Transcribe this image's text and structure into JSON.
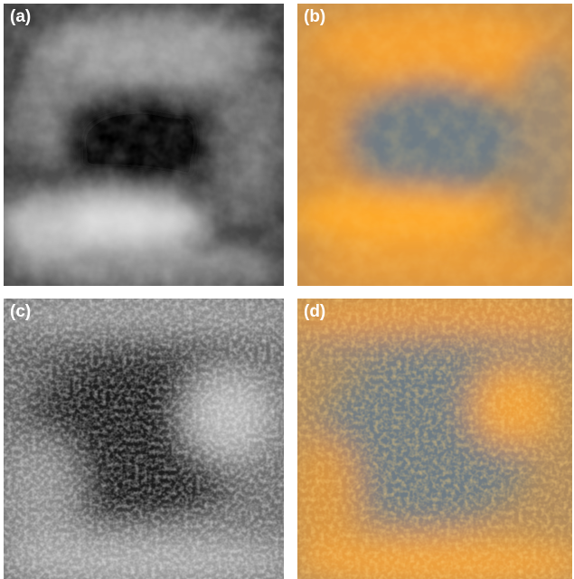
{
  "panels": [
    {
      "id": "a",
      "label": "(a)",
      "style": "grayscale-smooth"
    },
    {
      "id": "b",
      "label": "(b)",
      "style": "orange-smooth"
    },
    {
      "id": "c",
      "label": "(c)",
      "style": "grayscale-speckle"
    },
    {
      "id": "d",
      "label": "(d)",
      "style": "orange-speckle"
    }
  ],
  "colors": {
    "background": "#ffffff",
    "label": "#ffffff",
    "orange": "#f7a233",
    "slate": "#6f7c84",
    "dark": "#050505",
    "light": "#f2f2f2"
  }
}
